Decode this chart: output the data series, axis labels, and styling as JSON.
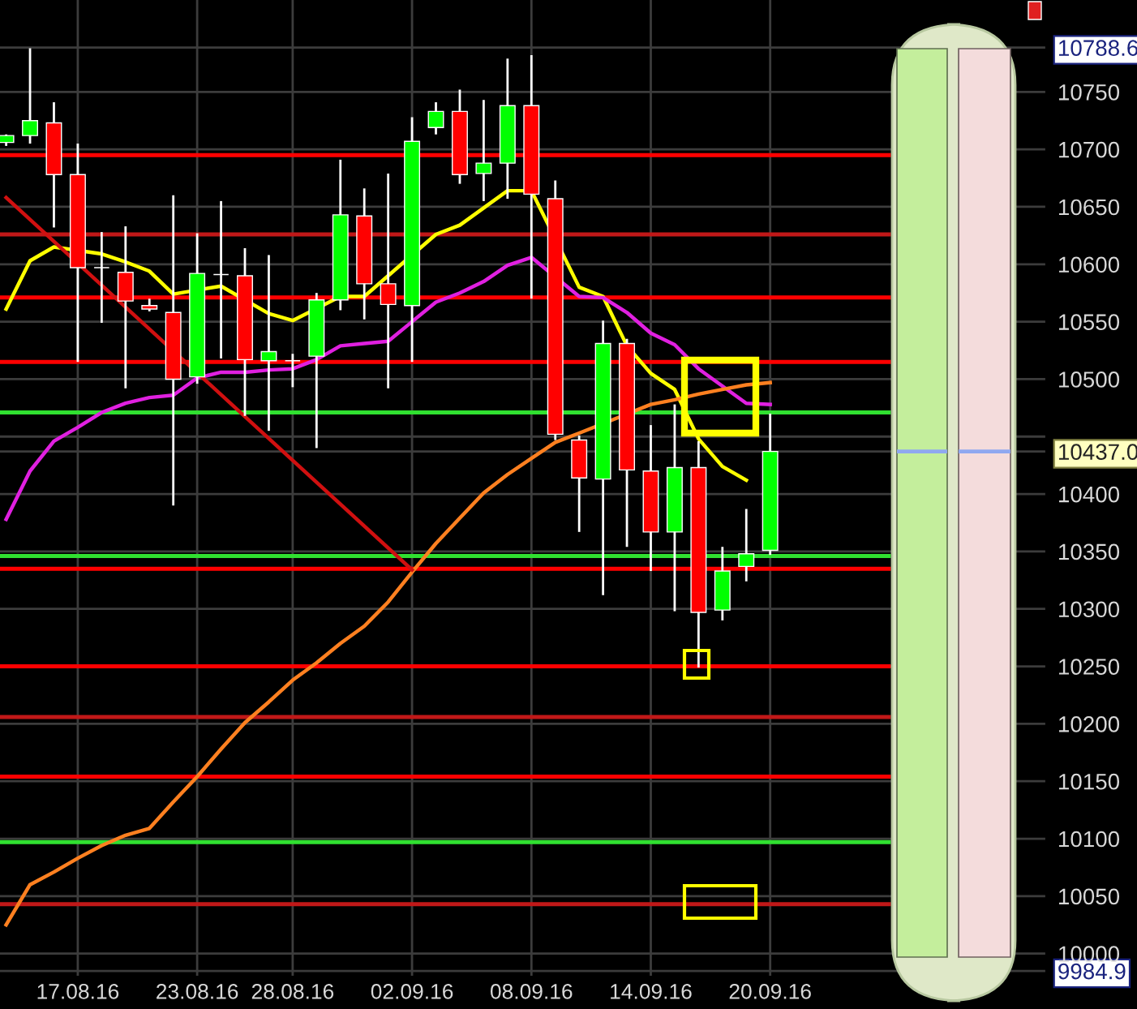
{
  "chart_data": {
    "type": "candlestick",
    "categories": [
      null,
      null,
      null,
      "17.08.16",
      null,
      null,
      null,
      null,
      "23.08.16",
      null,
      null,
      null,
      "28.08.16",
      null,
      null,
      null,
      null,
      "02.09.16",
      null,
      null,
      null,
      null,
      "08.09.16",
      null,
      null,
      null,
      null,
      "14.09.16",
      null,
      null,
      null,
      null,
      "20.09.16"
    ],
    "ohlc": [
      [
        10706,
        10713,
        10703,
        10712
      ],
      [
        10712,
        10788,
        10705,
        10725
      ],
      [
        10723,
        10741,
        10632,
        10678
      ],
      [
        10678,
        10705,
        10515,
        10597
      ],
      [
        10597,
        10628,
        10549,
        10597
      ],
      [
        10593,
        10633,
        10492,
        10568
      ],
      [
        10564,
        10570,
        10559,
        10561
      ],
      [
        10558,
        10660,
        10390,
        10500
      ],
      [
        10502,
        10627,
        10496,
        10592
      ],
      [
        10591,
        10655,
        10518,
        10591
      ],
      [
        10590,
        10614,
        10468,
        10517
      ],
      [
        10516,
        10608,
        10455,
        10524
      ],
      [
        10516,
        10522,
        10493,
        10516
      ],
      [
        10520,
        10575,
        10440,
        10569
      ],
      [
        10569,
        10691,
        10560,
        10643
      ],
      [
        10642,
        10666,
        10552,
        10583
      ],
      [
        10583,
        10679,
        10492,
        10565
      ],
      [
        10564,
        10728,
        10515,
        10707
      ],
      [
        10719,
        10741,
        10713,
        10733
      ],
      [
        10733,
        10752,
        10670,
        10678
      ],
      [
        10679,
        10743,
        10655,
        10688
      ],
      [
        10688,
        10779,
        10657,
        10738
      ],
      [
        10738,
        10782,
        10570,
        10661
      ],
      [
        10657,
        10673,
        10447,
        10452
      ],
      [
        10447,
        10451,
        10367,
        10414
      ],
      [
        10413,
        10551,
        10312,
        10531
      ],
      [
        10531,
        10535,
        10354,
        10421
      ],
      [
        10420,
        10460,
        10333,
        10367
      ],
      [
        10367,
        10478,
        10298,
        10423
      ],
      [
        10423,
        10446,
        10249,
        10297
      ],
      [
        10299,
        10354,
        10290,
        10333
      ],
      [
        10337,
        10387,
        10324,
        10348
      ],
      [
        10351,
        10470,
        10347,
        10437
      ]
    ],
    "colors": [
      "#00ff00",
      "#00ff00",
      "#ff0000",
      "#ff0000",
      "#ffffff",
      "#ff0000",
      "#ff0000",
      "#ff0000",
      "#00ff00",
      "#ffffff",
      "#ff0000",
      "#00ff00",
      "#ffffff",
      "#00ff00",
      "#00ff00",
      "#ff0000",
      "#ff0000",
      "#00ff00",
      "#00ff00",
      "#ff0000",
      "#00ff00",
      "#00ff00",
      "#ff0000",
      "#ff0000",
      "#ff0000",
      "#00ff00",
      "#ff0000",
      "#ff0000",
      "#00ff00",
      "#ff0000",
      "#00ff00",
      "#00ff00",
      "#00ff00"
    ],
    "series": [
      {
        "type": "line",
        "color": "#ffff00",
        "values": [
          10561,
          10603,
          10615,
          null,
          10609,
          10602,
          10594,
          10574,
          null,
          10581,
          null,
          10557,
          10551,
          null,
          10572,
          10572,
          null,
          null,
          10626,
          10634,
          10649,
          10664,
          10664,
          null,
          10580,
          10572,
          10529,
          10505,
          10491,
          10448,
          10424,
          10412,
          null
        ]
      },
      {
        "type": "line",
        "color": "#e020e0",
        "values": [
          10378,
          10420,
          10446,
          10458,
          10471,
          10479,
          10484,
          10486,
          10501,
          10506,
          10506,
          10508,
          10509,
          10517,
          10529,
          10531,
          10533,
          10550,
          10567,
          10575,
          10585,
          10599,
          10606,
          null,
          10572,
          10571,
          10558,
          10540,
          10530,
          10509,
          10494,
          10479,
          10478
        ]
      },
      {
        "type": "line",
        "color": "#ff8020",
        "values": [
          10025,
          10060,
          10071,
          10083,
          10094,
          10103,
          10109,
          10132,
          10154,
          10178,
          10201,
          10219,
          10238,
          10253,
          10270,
          10285,
          10306,
          10332,
          10357,
          10379,
          10401,
          10417,
          10431,
          10445,
          10453,
          null,
          null,
          10478,
          10482,
          10487,
          10491,
          10495,
          10497
        ]
      },
      {
        "type": "line",
        "color": "#d01010",
        "values": [
          10658,
          null,
          null,
          null,
          null,
          null,
          null,
          null,
          null,
          null,
          null,
          null,
          null,
          null,
          null,
          null,
          null,
          10334,
          null,
          null,
          null,
          null,
          null,
          null,
          null,
          null,
          null,
          null,
          null,
          null,
          null,
          null,
          null
        ]
      }
    ],
    "ylim": [
      9980,
      10830
    ],
    "yticks": [
      {
        "value": 9984.9,
        "label": "9984.9"
      },
      10000,
      10050,
      10100,
      10150,
      10200,
      10250,
      10300,
      10350,
      10400,
      {
        "value": 10437,
        "label": "10437.0"
      },
      {
        "value": 10450,
        "label": null
      },
      10500,
      10550,
      10600,
      10650,
      10700,
      10750,
      {
        "value": 10788.6,
        "label": "10788.6"
      }
    ],
    "ref_lines": [
      {
        "axis": "y",
        "value": 10695,
        "color": "#ff0000"
      },
      {
        "axis": "y",
        "value": 10626,
        "color": "#c01818"
      },
      {
        "axis": "y",
        "value": 10571,
        "color": "#ff0000"
      },
      {
        "axis": "y",
        "value": 10515,
        "color": "#ff0000"
      },
      {
        "axis": "y",
        "value": 10471,
        "color": "#30e030"
      },
      {
        "axis": "y",
        "value": 10346,
        "color": "#30e030"
      },
      {
        "axis": "y",
        "value": 10335,
        "color": "#ff0000"
      },
      {
        "axis": "y",
        "value": 10250,
        "color": "#ff0000"
      },
      {
        "axis": "y",
        "value": 10206,
        "color": "#c01818"
      },
      {
        "axis": "y",
        "value": 10154,
        "color": "#ff0000"
      },
      {
        "axis": "y",
        "value": 10097,
        "color": "#30e030"
      },
      {
        "axis": "y",
        "value": 10043,
        "color": "#c01818"
      }
    ],
    "grid": true
  }
}
